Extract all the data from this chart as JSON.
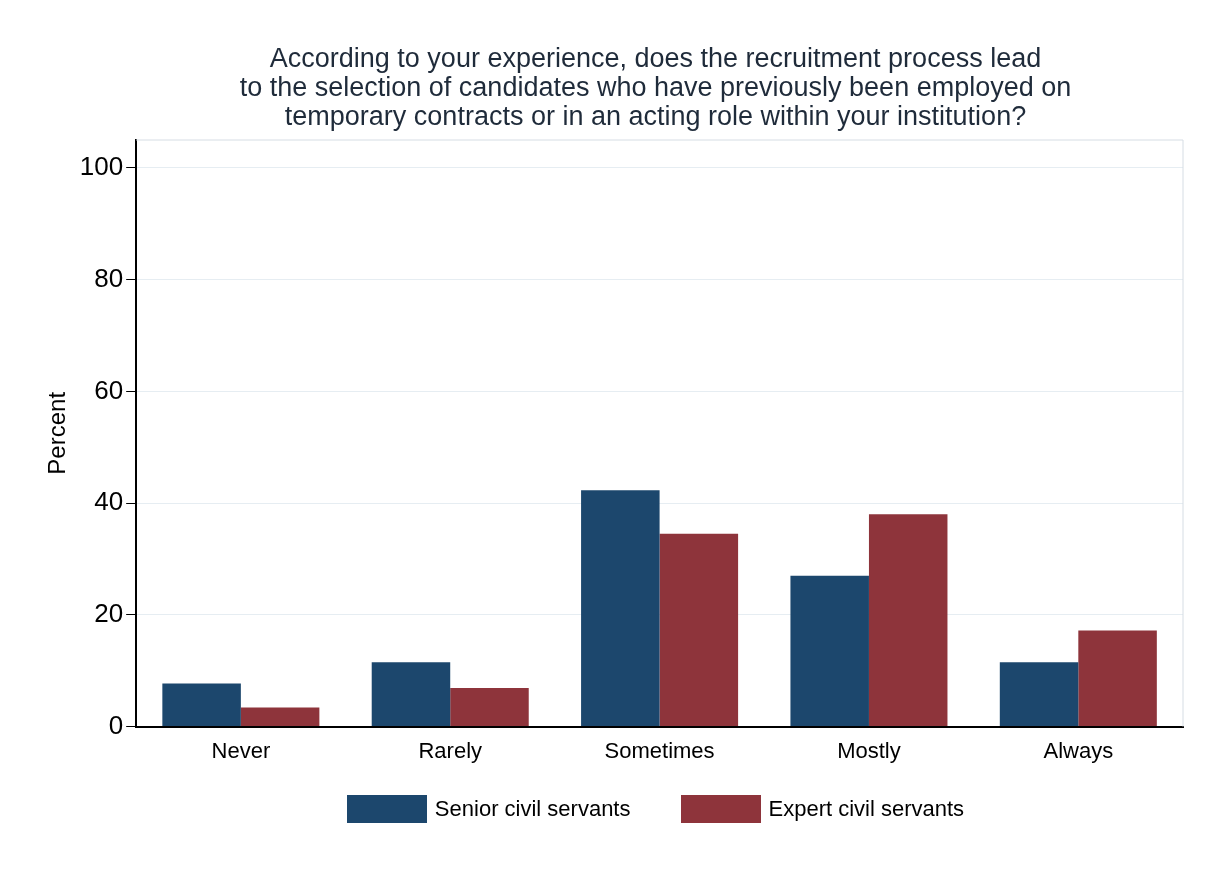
{
  "chart_data": {
    "type": "bar",
    "title": "According to your experience, does the recruitment process lead\nto the selection of candidates who have previously been employed on\ntemporary contracts or in an acting role within your institution?",
    "ylabel": "Percent",
    "categories": [
      "Never",
      "Rarely",
      "Sometimes",
      "Mostly",
      "Always"
    ],
    "series": [
      {
        "name": "Senior civil servants",
        "color": "#1c476d",
        "values": [
          7.7,
          11.5,
          42.3,
          27.0,
          11.5
        ]
      },
      {
        "name": "Expert civil servants",
        "color": "#8e343b",
        "values": [
          3.4,
          6.9,
          34.5,
          38.0,
          17.2
        ]
      }
    ],
    "ylim": [
      0,
      105
    ],
    "yticks": [
      0,
      20,
      40,
      60,
      80,
      100
    ],
    "grid": "y",
    "legend": "bottom"
  }
}
